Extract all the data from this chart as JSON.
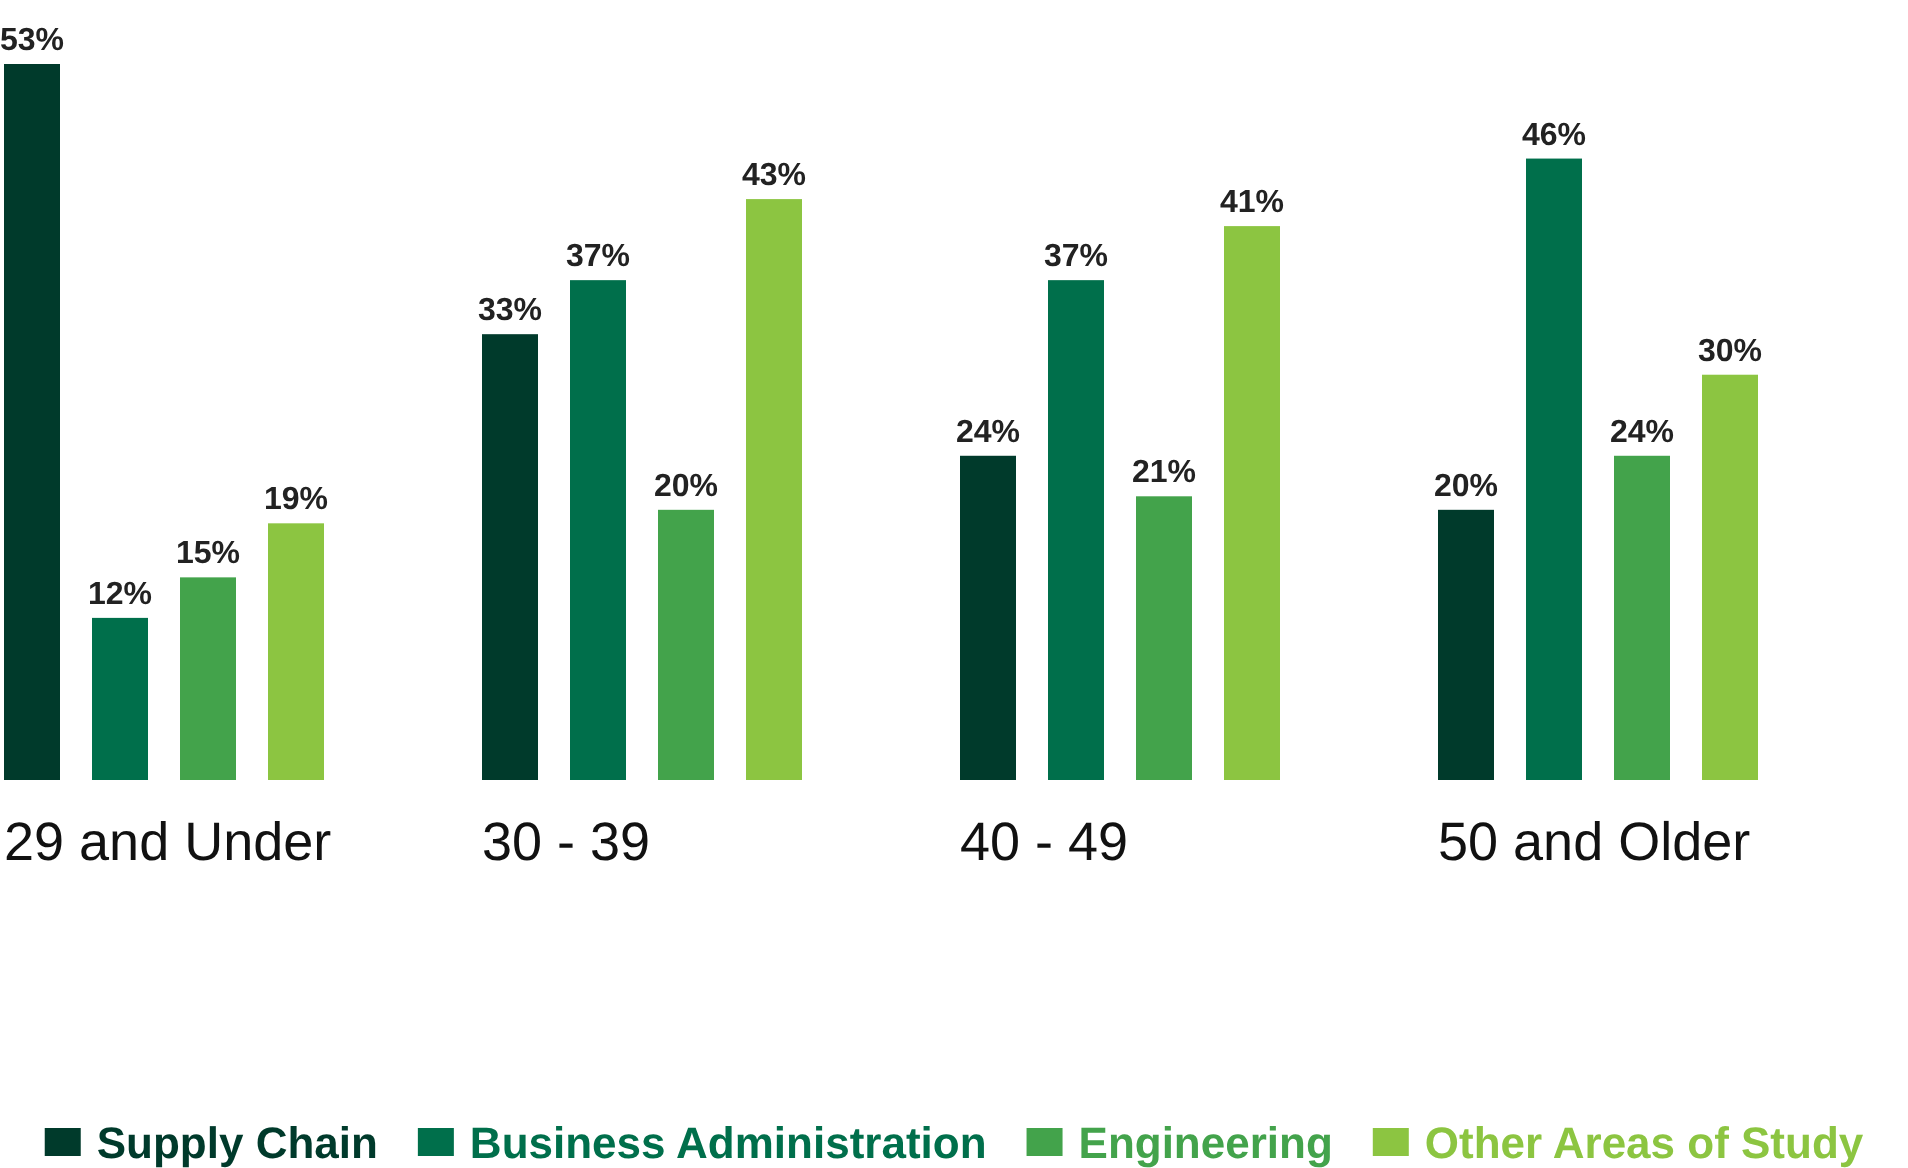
{
  "chart_data": {
    "type": "bar",
    "categories": [
      "29 and Under",
      "30 - 39",
      "40 - 49",
      "50 and Older"
    ],
    "series": [
      {
        "name": "Supply Chain",
        "color": "#003a2b",
        "values": [
          53,
          33,
          24,
          20
        ],
        "value_labels": [
          "53%",
          "33%",
          "24%",
          "20%"
        ]
      },
      {
        "name": "Business Administration",
        "color": "#006f4b",
        "values": [
          12,
          37,
          37,
          46
        ],
        "value_labels": [
          "12%",
          "37%",
          "37%",
          "46%"
        ]
      },
      {
        "name": "Engineering",
        "color": "#43a34b",
        "values": [
          15,
          20,
          21,
          24
        ],
        "value_labels": [
          "15%",
          "20%",
          "21%",
          "24%"
        ]
      },
      {
        "name": "Other Areas of Study",
        "color": "#8cc541",
        "values": [
          19,
          43,
          41,
          30
        ],
        "value_labels": [
          "19%",
          "43%",
          "41%",
          "30%"
        ]
      }
    ],
    "tick_labels": "x",
    "legend": "bottom"
  }
}
